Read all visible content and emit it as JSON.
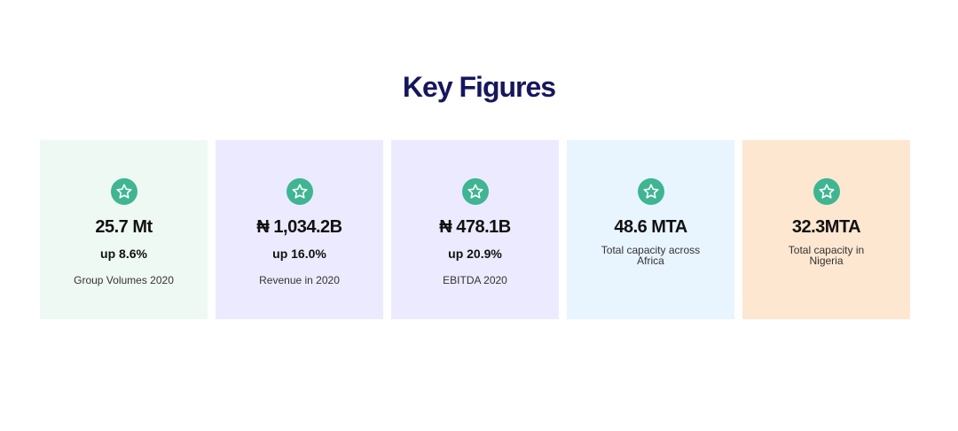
{
  "title": "Key Figures",
  "colors": {
    "title": "#16165e",
    "star": "#3fb592"
  },
  "cards": [
    {
      "value": "25.7 Mt",
      "change": "up 8.6%",
      "label": "Group Volumes 2020",
      "icon": "star-icon",
      "bg": "#eff9f4"
    },
    {
      "value": "₦ 1,034.2B",
      "change": "up 16.0%",
      "label": "Revenue in 2020",
      "icon": "star-icon",
      "bg": "#eceafe"
    },
    {
      "value": "₦ 478.1B",
      "change": "up 20.9%",
      "label": "EBITDA 2020",
      "icon": "star-icon",
      "bg": "#eceafe"
    },
    {
      "value": "48.6 MTA",
      "change": "",
      "label": "Total capacity across Africa",
      "icon": "star-icon",
      "bg": "#e8f4fe"
    },
    {
      "value": "32.3MTA",
      "change": "",
      "label": "Total capacity in Nigeria",
      "icon": "star-icon",
      "bg": "#fde7d1"
    }
  ]
}
